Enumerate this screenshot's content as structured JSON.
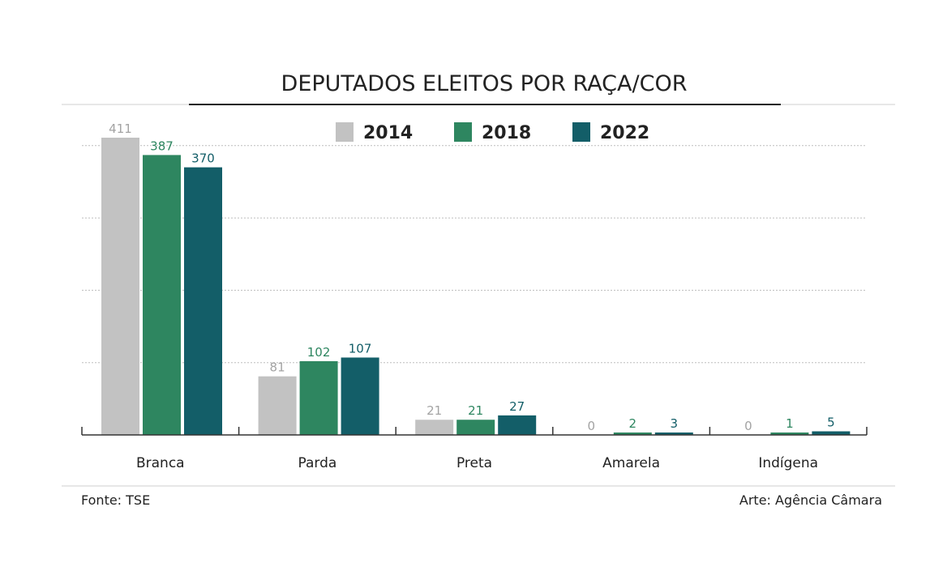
{
  "chart_data": {
    "type": "bar",
    "title": "DEPUTADOS ELEITOS POR RAÇA/COR",
    "categories": [
      "Branca",
      "Parda",
      "Preta",
      "Amarela",
      "Indígena"
    ],
    "series": [
      {
        "name": "2014",
        "values": [
          411,
          81,
          21,
          0,
          0
        ],
        "color": "#c2c2c2",
        "label_color": "#a3a3a3"
      },
      {
        "name": "2018",
        "values": [
          387,
          102,
          21,
          2,
          1
        ],
        "color": "#2e8660",
        "label_color": "#2e8660"
      },
      {
        "name": "2022",
        "values": [
          370,
          107,
          27,
          3,
          5
        ],
        "color": "#135e68",
        "label_color": "#135e68"
      }
    ],
    "ylim": [
      0,
      400
    ],
    "grid": true,
    "legend": "top-center",
    "source": "Fonte: TSE",
    "credit": "Arte: Agência Câmara"
  }
}
